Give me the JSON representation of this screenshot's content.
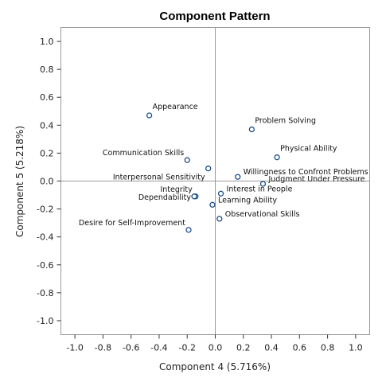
{
  "chart_data": {
    "type": "scatter",
    "title": "Component Pattern",
    "xlabel": "Component 4 (5.716%)",
    "ylabel": "Component 5 (5.218%)",
    "xlim": [
      -1.1,
      1.1
    ],
    "ylim": [
      -1.1,
      1.1
    ],
    "xticks": [
      "-1.0",
      "-0.8",
      "-0.6",
      "-0.4",
      "-0.2",
      "0.0",
      "0.2",
      "0.4",
      "0.6",
      "0.8",
      "1.0"
    ],
    "yticks": [
      "1.0",
      "0.8",
      "0.6",
      "0.4",
      "0.2",
      "0.0",
      "-0.2",
      "-0.4",
      "-0.6",
      "-0.8",
      "-1.0"
    ],
    "reference_lines": {
      "x": 0,
      "y": 0
    },
    "grid": false,
    "marker_color": "#1F4E8C",
    "points": [
      {
        "label": "Appearance",
        "x": -0.47,
        "y": 0.47,
        "label_pos": "above-right"
      },
      {
        "label": "Problem Solving",
        "x": 0.26,
        "y": 0.37,
        "label_pos": "above-right"
      },
      {
        "label": "Communication Skills",
        "x": -0.2,
        "y": 0.15,
        "label_pos": "above-left"
      },
      {
        "label": "Physical Ability",
        "x": 0.44,
        "y": 0.17,
        "label_pos": "above-right"
      },
      {
        "label": "Interpersonal Sensitivity",
        "x": -0.05,
        "y": 0.09,
        "label_pos": "below-left"
      },
      {
        "label": "Willingness to Confront Problems",
        "x": 0.16,
        "y": 0.03,
        "label_pos": "right"
      },
      {
        "label": "Judgment Under Pressure",
        "x": 0.34,
        "y": -0.02,
        "label_pos": "right"
      },
      {
        "label": "Integrity",
        "x": -0.14,
        "y": -0.11,
        "label_pos": "above-left"
      },
      {
        "label": "Dependability",
        "x": -0.15,
        "y": -0.11,
        "label_pos": "left"
      },
      {
        "label": "Interest in People",
        "x": 0.04,
        "y": -0.09,
        "label_pos": "right"
      },
      {
        "label": "Learning Ability",
        "x": -0.02,
        "y": -0.17,
        "label_pos": "right"
      },
      {
        "label": "Observational Skills",
        "x": 0.03,
        "y": -0.27,
        "label_pos": "right"
      },
      {
        "label": "Desire for Self-Improvement",
        "x": -0.19,
        "y": -0.35,
        "label_pos": "above-left"
      }
    ]
  }
}
